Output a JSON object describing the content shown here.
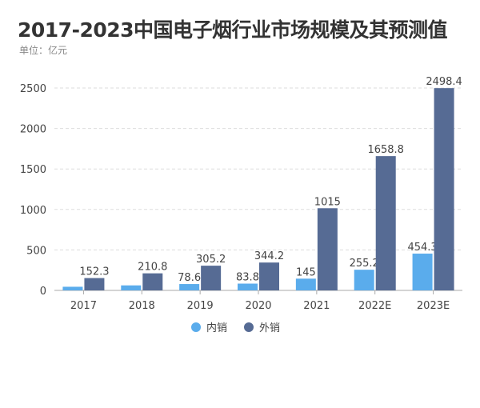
{
  "chart_data": {
    "type": "bar",
    "title": "2017-2023中国电子烟行业市场规模及其预测值",
    "subtitle": "单位：亿元",
    "categories": [
      "2017",
      "2018",
      "2019",
      "2020",
      "2021",
      "2022E",
      "2023E"
    ],
    "series": [
      {
        "name": "内销",
        "color": "#5aacec",
        "values": [
          45,
          62,
          78.6,
          83.8,
          145,
          255.2,
          454.3
        ],
        "labels": [
          "",
          "",
          "78.6",
          "83.8",
          "145",
          "255.2",
          "454.3"
        ]
      },
      {
        "name": "外销",
        "color": "#566b94",
        "values": [
          152.3,
          210.8,
          305.2,
          344.2,
          1015,
          1658.8,
          2498.4
        ],
        "labels": [
          "152.3",
          "210.8",
          "305.2",
          "344.2",
          "1015",
          "1658.8",
          "2498.4"
        ]
      }
    ],
    "ylim": [
      0,
      2500
    ],
    "yticks": [
      "0",
      "500",
      "1000",
      "1500",
      "2000",
      "2500"
    ],
    "grid": true,
    "legend": "bottom-center"
  }
}
